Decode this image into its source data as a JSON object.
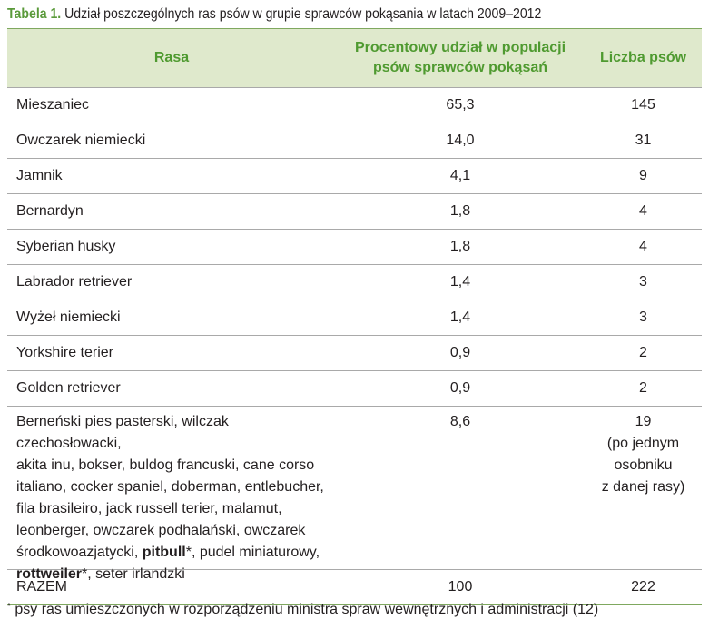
{
  "caption": {
    "label": "Tabela 1.",
    "text": "Udział poszczególnych ras psów w grupie sprawców pokąsania w latach 2009–2012"
  },
  "header": {
    "breed": "Rasa",
    "percent_line1": "Procentowy udział w populacji",
    "percent_line2": "psów sprawców pokąsań",
    "count": "Liczba psów"
  },
  "rows": [
    {
      "breed": "Mieszaniec",
      "percent": "65,3",
      "count": "145"
    },
    {
      "breed": "Owczarek niemiecki",
      "percent": "14,0",
      "count": "31"
    },
    {
      "breed": "Jamnik",
      "percent": "4,1",
      "count": "9"
    },
    {
      "breed": "Bernardyn",
      "percent": "1,8",
      "count": "4"
    },
    {
      "breed": "Syberian husky",
      "percent": "1,8",
      "count": "4"
    },
    {
      "breed": "Labrador retriever",
      "percent": "1,4",
      "count": "3"
    },
    {
      "breed": "Wyżeł niemiecki",
      "percent": "1,4",
      "count": "3"
    },
    {
      "breed": "Yorkshire terier",
      "percent": "0,9",
      "count": "2"
    },
    {
      "breed": "Golden retriever",
      "percent": "0,9",
      "count": "2"
    }
  ],
  "other": {
    "line1": "Berneński pies pasterski, wilczak czechosłowacki,",
    "line2": "akita inu, bokser, buldog francuski, cane corso",
    "line3": "italiano, cocker spaniel, doberman, entlebucher,",
    "line4": "fila brasileiro, jack russell terier, malamut,",
    "line5": "leonberger, owczarek podhalański, owczarek",
    "line6_pre": "środkowoazjatycki, ",
    "pitbull": "pitbull",
    "star": "*",
    "line6_post": ", pudel miniaturowy,",
    "rottweiler": "rottweiler",
    "line7_post": ", seter irlandzki",
    "percent": "8,6",
    "count": "19",
    "count_note1": "(po jednym",
    "count_note2": "osobniku",
    "count_note3": "z danej rasy)"
  },
  "total": {
    "label": "RAZEM",
    "percent": "100",
    "count": "222"
  },
  "footnote": {
    "mark": "*",
    "text": " psy ras umieszczonych w rozporządzeniu ministra spraw wewnętrznych i administracji (12)"
  }
}
